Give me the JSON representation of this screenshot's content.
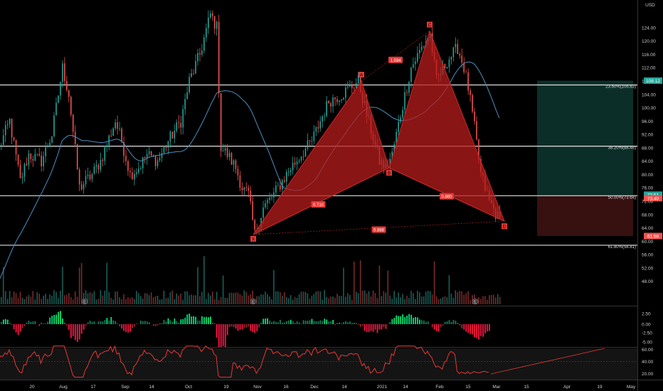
{
  "chart_data": {
    "type": "candlestick",
    "currency": "USD",
    "y_axis_price": {
      "ticks": [
        "124.00",
        "120.00",
        "116.00",
        "112.00",
        "108.00",
        "104.00",
        "100.00",
        "96.00",
        "92.00",
        "88.00",
        "84.00",
        "80.00",
        "76.00",
        "72.00",
        "68.00",
        "64.00",
        "60.00",
        "56.00",
        "52.00",
        "48.00"
      ],
      "ylim": [
        44,
        130
      ]
    },
    "y_axis_osc": {
      "ticks": [
        "2.50",
        "0.00",
        "-2.50",
        "-5.00"
      ]
    },
    "y_axis_rsi": {
      "ticks": [
        "60.00",
        "40.00",
        "20.00"
      ]
    },
    "x_axis": {
      "ticks": [
        "20",
        "Aug",
        "17",
        "Sep",
        "14",
        "Oct",
        "19",
        "Nov",
        "16",
        "Dec",
        "14",
        "2021",
        "14",
        "Feb",
        "15",
        "Mar",
        "15",
        "Apr",
        "19",
        "May"
      ]
    },
    "fib_levels": [
      {
        "label": "23.60%(106.83)",
        "value": 106.83
      },
      {
        "label": "38.20%(88.48)",
        "value": 88.48
      },
      {
        "label": "50.00%(73.64)",
        "value": 73.64
      },
      {
        "label": "61.80%(58.81)",
        "value": 58.81
      }
    ],
    "harmonic_points": [
      {
        "label": "X",
        "date": "Nov 2",
        "price": 62
      },
      {
        "label": "A",
        "date": "Jan 7",
        "price": 108
      },
      {
        "label": "B",
        "date": "Jan 20",
        "price": 82
      },
      {
        "label": "C",
        "date": "Feb 5",
        "price": 123
      },
      {
        "label": "D",
        "date": "Mar 1",
        "price": 66
      }
    ],
    "ratio_labels": [
      "0.710",
      "1.594",
      "0.860",
      "0.888"
    ],
    "price_badges": [
      {
        "label": "108.12",
        "color": "#26a69a"
      },
      {
        "label": "73.51",
        "color": "#26a69a"
      },
      {
        "label": "73.40",
        "color": "#ef5350"
      },
      {
        "label": "61.56",
        "color": "#ef5350"
      }
    ],
    "position": {
      "target": 108.12,
      "entry": 73.51,
      "stop": 61.56
    },
    "earnings_markers": [
      "E",
      "E",
      "E"
    ],
    "colors": {
      "up": "#26a69a",
      "down": "#ef5350",
      "pattern": "#b71c1c",
      "ma": "#4a90c0",
      "rsi": "#e53935",
      "osc_up": "#00e676",
      "osc_down": "#ff1744"
    }
  }
}
